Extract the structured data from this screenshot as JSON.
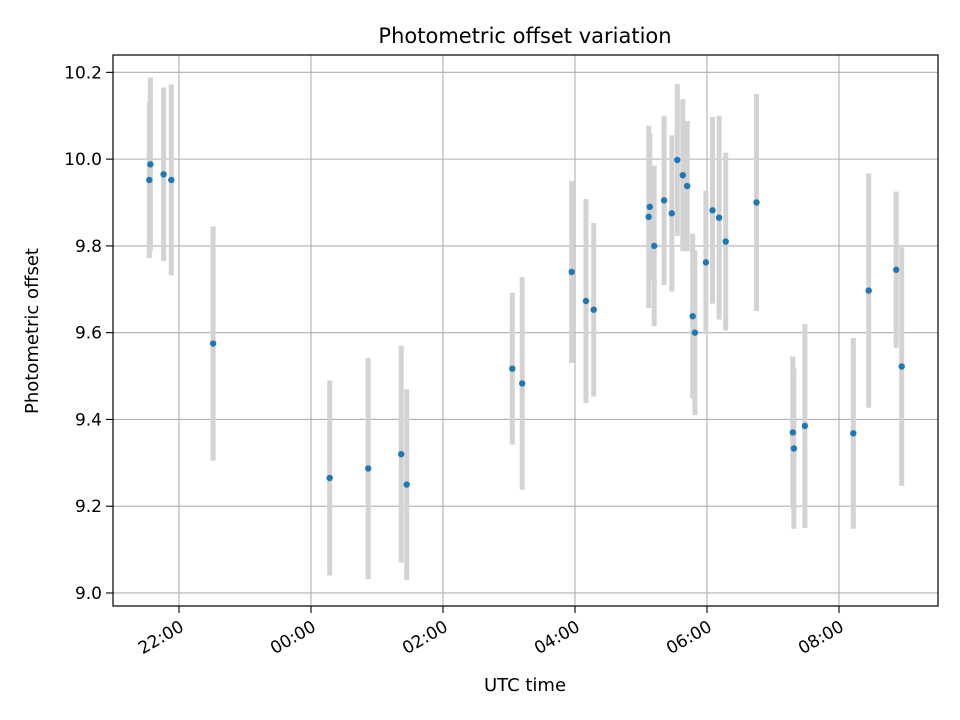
{
  "chart_data": {
    "type": "scatter",
    "title": "Photometric offset variation",
    "xlabel": "UTC time",
    "ylabel": "Photometric offset",
    "x_axis": {
      "kind": "time",
      "range": [
        "21:00",
        "09:30"
      ],
      "ticks": [
        "22:00",
        "00:00",
        "02:00",
        "04:00",
        "06:00",
        "08:00"
      ]
    },
    "y_axis": {
      "range": [
        8.97,
        10.24
      ],
      "ticks": [
        "9.0",
        "9.2",
        "9.4",
        "9.6",
        "9.8",
        "10.0",
        "10.2"
      ]
    },
    "grid": true,
    "colors": {
      "point": "#1f77b4",
      "errorbar": "#d3d3d3",
      "grid": "#b0b0b0"
    },
    "series": [
      {
        "points": [
          {
            "x": "21:33",
            "y": 9.952,
            "err": 0.18
          },
          {
            "x": "21:34",
            "y": 9.988,
            "err": 0.2
          },
          {
            "x": "21:46",
            "y": 9.965,
            "err": 0.2
          },
          {
            "x": "21:53",
            "y": 9.952,
            "err": 0.22
          },
          {
            "x": "22:31",
            "y": 9.575,
            "err": 0.27
          },
          {
            "x": "00:17",
            "y": 9.265,
            "err": 0.225
          },
          {
            "x": "00:52",
            "y": 9.287,
            "err": 0.255
          },
          {
            "x": "01:22",
            "y": 9.32,
            "err": 0.25
          },
          {
            "x": "01:27",
            "y": 9.25,
            "err": 0.22
          },
          {
            "x": "03:03",
            "y": 9.517,
            "err": 0.175
          },
          {
            "x": "03:12",
            "y": 9.483,
            "err": 0.245
          },
          {
            "x": "03:57",
            "y": 9.74,
            "err": 0.21
          },
          {
            "x": "04:10",
            "y": 9.673,
            "err": 0.235
          },
          {
            "x": "04:17",
            "y": 9.653,
            "err": 0.2
          },
          {
            "x": "05:07",
            "y": 9.867,
            "err": 0.21
          },
          {
            "x": "05:08",
            "y": 9.89,
            "err": 0.17
          },
          {
            "x": "05:12",
            "y": 9.8,
            "err": 0.185
          },
          {
            "x": "05:21",
            "y": 9.905,
            "err": 0.195
          },
          {
            "x": "05:28",
            "y": 9.875,
            "err": 0.18
          },
          {
            "x": "05:33",
            "y": 9.998,
            "err": 0.175
          },
          {
            "x": "05:38",
            "y": 9.963,
            "err": 0.175
          },
          {
            "x": "05:42",
            "y": 9.938,
            "err": 0.15
          },
          {
            "x": "05:47",
            "y": 9.638,
            "err": 0.19
          },
          {
            "x": "05:49",
            "y": 9.6,
            "err": 0.19
          },
          {
            "x": "05:59",
            "y": 9.762,
            "err": 0.165
          },
          {
            "x": "06:05",
            "y": 9.882,
            "err": 0.215
          },
          {
            "x": "06:11",
            "y": 9.865,
            "err": 0.235
          },
          {
            "x": "06:17",
            "y": 9.81,
            "err": 0.205
          },
          {
            "x": "06:45",
            "y": 9.9,
            "err": 0.25
          },
          {
            "x": "07:18",
            "y": 9.37,
            "err": 0.175
          },
          {
            "x": "07:19",
            "y": 9.333,
            "err": 0.185
          },
          {
            "x": "07:29",
            "y": 9.385,
            "err": 0.235
          },
          {
            "x": "08:13",
            "y": 9.368,
            "err": 0.22
          },
          {
            "x": "08:27",
            "y": 9.697,
            "err": 0.27
          },
          {
            "x": "08:52",
            "y": 9.745,
            "err": 0.18
          },
          {
            "x": "08:57",
            "y": 9.522,
            "err": 0.275
          }
        ]
      }
    ]
  }
}
